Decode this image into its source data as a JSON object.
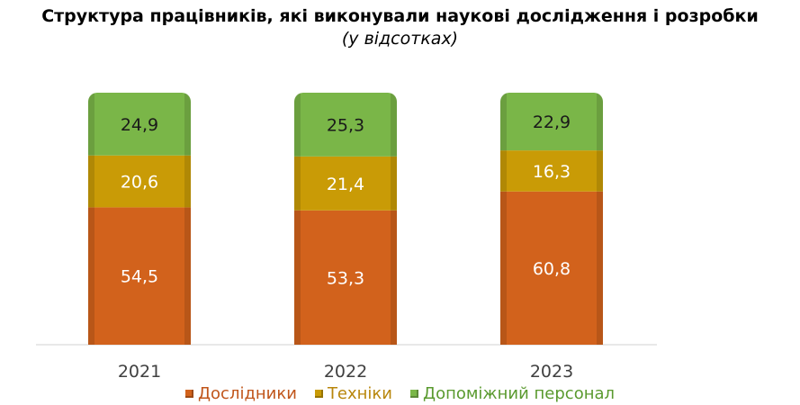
{
  "chart_data": {
    "type": "bar",
    "stacked": true,
    "title": "Структура працівників, які виконували наукові дослідження і розробки",
    "subtitle": "(у відсотках)",
    "categories": [
      "2021",
      "2022",
      "2023"
    ],
    "series": [
      {
        "name": "Дослідники",
        "values": [
          "54,5",
          "53,3",
          "60,8"
        ],
        "color": "#d2621c",
        "label_color": "#ffffff"
      },
      {
        "name": "Техніки",
        "values": [
          "20,6",
          "21,4",
          "16,3"
        ],
        "color": "#c99b06",
        "label_color": "#ffffff"
      },
      {
        "name": "Допоміжний персонал",
        "values": [
          "24,9",
          "25,3",
          "22,9"
        ],
        "color": "#7ab648",
        "label_color": "#1a1a1a"
      }
    ],
    "legend_position": "bottom",
    "grid": false
  }
}
